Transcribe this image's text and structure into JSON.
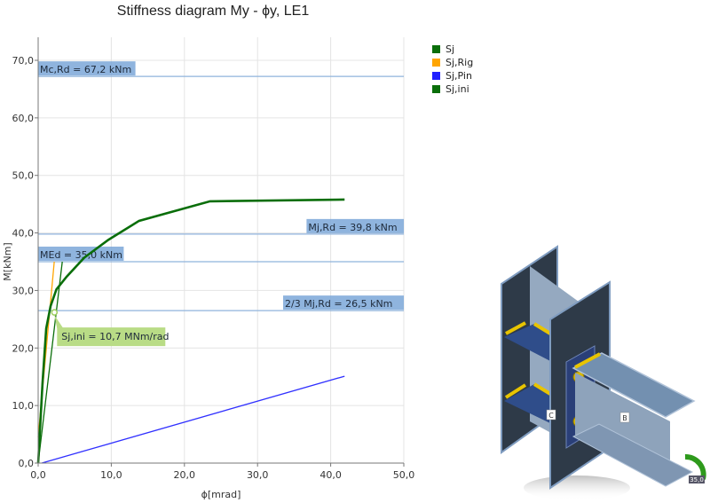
{
  "chart_data": {
    "type": "line",
    "title": "Stiffness diagram My - ϕy, LE1",
    "xlabel": "ϕ[mrad]",
    "ylabel": "M[kNm]",
    "xlim": [
      0,
      50
    ],
    "ylim": [
      0,
      70
    ],
    "x_ticks": [
      "0,0",
      "10,0",
      "20,0",
      "30,0",
      "40,0",
      "50,0"
    ],
    "y_ticks": [
      "0,0",
      "10,0",
      "20,0",
      "30,0",
      "40,0",
      "50,0",
      "60,0",
      "70,0"
    ],
    "grid": true,
    "legend_position": "right",
    "series": [
      {
        "name": "Sj",
        "color": "#0a6e0a",
        "x": [
          0,
          0.6,
          1.1,
          1.7,
          2.5,
          3.9,
          6.3,
          9.6,
          13.8,
          23.5,
          41.9
        ],
        "y": [
          0,
          14.0,
          23.4,
          27.3,
          30.2,
          32.4,
          35.7,
          38.8,
          42.1,
          45.5,
          45.8
        ]
      },
      {
        "name": "Sj,Rig",
        "color": "#ffa500",
        "x": [
          0,
          2.2
        ],
        "y": [
          4.5,
          35.0
        ]
      },
      {
        "name": "Sj,Pin",
        "color": "#3030ff",
        "x": [
          0.5,
          41.9
        ],
        "y": [
          0,
          15.1
        ]
      },
      {
        "name": "Sj,ini",
        "color": "#0a6e0a",
        "x": [
          0,
          3.3
        ],
        "y": [
          0,
          35.0
        ]
      }
    ],
    "reference_lines": [
      {
        "label": "Mc,Rd = 67,2 kNm",
        "value": 67.2,
        "label_align": "left"
      },
      {
        "label": "Mj,Rd = 39,8 kNm",
        "value": 39.8,
        "label_align": "right"
      },
      {
        "label": "MEd = 35,0 kNm",
        "value": 35.0,
        "label_align": "left"
      },
      {
        "label": "2/3 Mj,Rd = 26,5 kNm",
        "value": 26.5,
        "label_align": "right"
      }
    ],
    "annotations": [
      {
        "text": "Sj,ini = 10,7 MNm/rad",
        "x": 2.1,
        "y": 26.5
      }
    ]
  },
  "legend": [
    {
      "label": "Sj",
      "color": "#0a6e0a"
    },
    {
      "label": "Sj,Rig",
      "color": "#ffa500"
    },
    {
      "label": "Sj,Pin",
      "color": "#2020ff"
    },
    {
      "label": "Sj,ini",
      "color": "#0a6e0a"
    }
  ],
  "model": {
    "member_labels": [
      "C",
      "B"
    ],
    "moment_value": "35,0"
  }
}
